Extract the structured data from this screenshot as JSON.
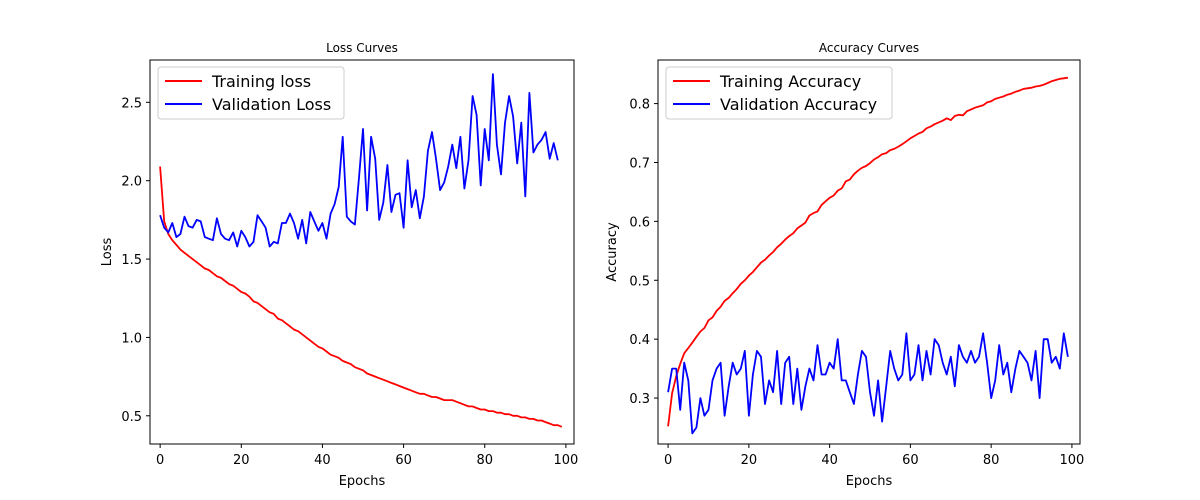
{
  "chart_data": [
    {
      "type": "line",
      "title": "Loss Curves",
      "xlabel": "Epochs",
      "ylabel": "Loss",
      "xlim": [
        -2.5,
        102
      ],
      "ylim": [
        0.32,
        2.77
      ],
      "xticks": [
        0,
        20,
        40,
        60,
        80,
        100
      ],
      "yticks": [
        0.5,
        1.0,
        1.5,
        2.0,
        2.5
      ],
      "xtick_labels": [
        "0",
        "20",
        "40",
        "60",
        "80",
        "100"
      ],
      "ytick_labels": [
        "0.5",
        "1.0",
        "1.5",
        "2.0",
        "2.5"
      ],
      "grid": false,
      "legend_position": "top-left",
      "series": [
        {
          "name": "Training loss",
          "color": "#ff0000",
          "values": [
            2.09,
            1.74,
            1.66,
            1.62,
            1.59,
            1.56,
            1.54,
            1.52,
            1.5,
            1.48,
            1.46,
            1.44,
            1.43,
            1.41,
            1.39,
            1.38,
            1.36,
            1.34,
            1.33,
            1.31,
            1.29,
            1.28,
            1.26,
            1.23,
            1.22,
            1.2,
            1.18,
            1.16,
            1.15,
            1.12,
            1.11,
            1.09,
            1.07,
            1.05,
            1.04,
            1.02,
            1.0,
            0.98,
            0.96,
            0.94,
            0.93,
            0.91,
            0.89,
            0.88,
            0.87,
            0.85,
            0.84,
            0.83,
            0.81,
            0.8,
            0.79,
            0.77,
            0.76,
            0.75,
            0.74,
            0.73,
            0.72,
            0.71,
            0.7,
            0.69,
            0.68,
            0.67,
            0.66,
            0.65,
            0.64,
            0.64,
            0.63,
            0.62,
            0.62,
            0.61,
            0.6,
            0.6,
            0.6,
            0.59,
            0.58,
            0.57,
            0.56,
            0.56,
            0.55,
            0.54,
            0.54,
            0.53,
            0.53,
            0.52,
            0.52,
            0.51,
            0.51,
            0.5,
            0.5,
            0.49,
            0.49,
            0.48,
            0.48,
            0.47,
            0.47,
            0.46,
            0.45,
            0.44,
            0.44,
            0.43
          ]
        },
        {
          "name": "Validation Loss",
          "color": "#0000ff",
          "values": [
            1.78,
            1.7,
            1.67,
            1.73,
            1.64,
            1.66,
            1.77,
            1.71,
            1.7,
            1.75,
            1.74,
            1.64,
            1.63,
            1.62,
            1.76,
            1.66,
            1.63,
            1.62,
            1.67,
            1.58,
            1.68,
            1.64,
            1.58,
            1.61,
            1.78,
            1.74,
            1.7,
            1.58,
            1.61,
            1.6,
            1.73,
            1.73,
            1.79,
            1.73,
            1.63,
            1.75,
            1.6,
            1.8,
            1.74,
            1.68,
            1.73,
            1.63,
            1.79,
            1.85,
            1.96,
            2.28,
            1.77,
            1.74,
            1.72,
            2.02,
            2.33,
            1.81,
            2.28,
            2.14,
            1.75,
            1.86,
            2.1,
            1.8,
            1.91,
            1.92,
            1.7,
            2.13,
            1.83,
            1.94,
            1.76,
            1.9,
            2.19,
            2.31,
            2.14,
            1.94,
            1.99,
            2.09,
            2.23,
            2.08,
            2.28,
            1.95,
            2.13,
            2.54,
            2.42,
            1.97,
            2.33,
            2.13,
            2.68,
            2.23,
            2.04,
            2.37,
            2.54,
            2.41,
            2.11,
            2.37,
            1.9,
            2.56,
            2.18,
            2.23,
            2.26,
            2.31,
            2.14,
            2.24,
            2.13
          ]
        }
      ]
    },
    {
      "type": "line",
      "title": "Accuracy Curves",
      "xlabel": "Epochs",
      "ylabel": "Accuracy",
      "xlim": [
        -2.5,
        102
      ],
      "ylim": [
        0.222,
        0.874
      ],
      "xticks": [
        0,
        20,
        40,
        60,
        80,
        100
      ],
      "yticks": [
        0.3,
        0.4,
        0.5,
        0.6,
        0.7,
        0.8
      ],
      "xtick_labels": [
        "0",
        "20",
        "40",
        "60",
        "80",
        "100"
      ],
      "ytick_labels": [
        "0.3",
        "0.4",
        "0.5",
        "0.6",
        "0.7",
        "0.8"
      ],
      "grid": false,
      "legend_position": "top-left",
      "series": [
        {
          "name": "Training Accuracy",
          "color": "#ff0000",
          "values": [
            0.252,
            0.308,
            0.337,
            0.358,
            0.376,
            0.385,
            0.394,
            0.404,
            0.413,
            0.419,
            0.432,
            0.437,
            0.448,
            0.455,
            0.465,
            0.47,
            0.478,
            0.485,
            0.494,
            0.5,
            0.508,
            0.514,
            0.522,
            0.53,
            0.535,
            0.542,
            0.548,
            0.556,
            0.562,
            0.569,
            0.575,
            0.58,
            0.588,
            0.593,
            0.598,
            0.61,
            0.614,
            0.617,
            0.628,
            0.634,
            0.64,
            0.644,
            0.652,
            0.656,
            0.668,
            0.671,
            0.68,
            0.686,
            0.691,
            0.694,
            0.699,
            0.705,
            0.709,
            0.714,
            0.716,
            0.721,
            0.723,
            0.727,
            0.731,
            0.736,
            0.741,
            0.745,
            0.749,
            0.752,
            0.758,
            0.761,
            0.765,
            0.768,
            0.771,
            0.775,
            0.772,
            0.779,
            0.781,
            0.78,
            0.787,
            0.79,
            0.793,
            0.795,
            0.797,
            0.802,
            0.804,
            0.808,
            0.81,
            0.812,
            0.815,
            0.817,
            0.82,
            0.822,
            0.825,
            0.826,
            0.827,
            0.829,
            0.83,
            0.832,
            0.835,
            0.838,
            0.84,
            0.842,
            0.843,
            0.844
          ]
        },
        {
          "name": "Validation Accuracy",
          "color": "#0000ff",
          "values": [
            0.31,
            0.35,
            0.35,
            0.28,
            0.36,
            0.33,
            0.24,
            0.25,
            0.3,
            0.27,
            0.28,
            0.33,
            0.35,
            0.36,
            0.27,
            0.32,
            0.36,
            0.34,
            0.35,
            0.38,
            0.27,
            0.34,
            0.38,
            0.37,
            0.29,
            0.33,
            0.31,
            0.38,
            0.29,
            0.36,
            0.37,
            0.29,
            0.35,
            0.28,
            0.32,
            0.35,
            0.33,
            0.39,
            0.34,
            0.34,
            0.36,
            0.35,
            0.4,
            0.33,
            0.33,
            0.31,
            0.29,
            0.34,
            0.38,
            0.37,
            0.31,
            0.27,
            0.33,
            0.26,
            0.32,
            0.38,
            0.35,
            0.33,
            0.34,
            0.41,
            0.33,
            0.34,
            0.39,
            0.33,
            0.38,
            0.34,
            0.4,
            0.39,
            0.36,
            0.34,
            0.37,
            0.32,
            0.39,
            0.37,
            0.36,
            0.38,
            0.36,
            0.37,
            0.41,
            0.36,
            0.3,
            0.33,
            0.39,
            0.34,
            0.36,
            0.31,
            0.35,
            0.38,
            0.37,
            0.36,
            0.33,
            0.38,
            0.3,
            0.4,
            0.4,
            0.36,
            0.37,
            0.35,
            0.41,
            0.37
          ]
        }
      ]
    }
  ]
}
